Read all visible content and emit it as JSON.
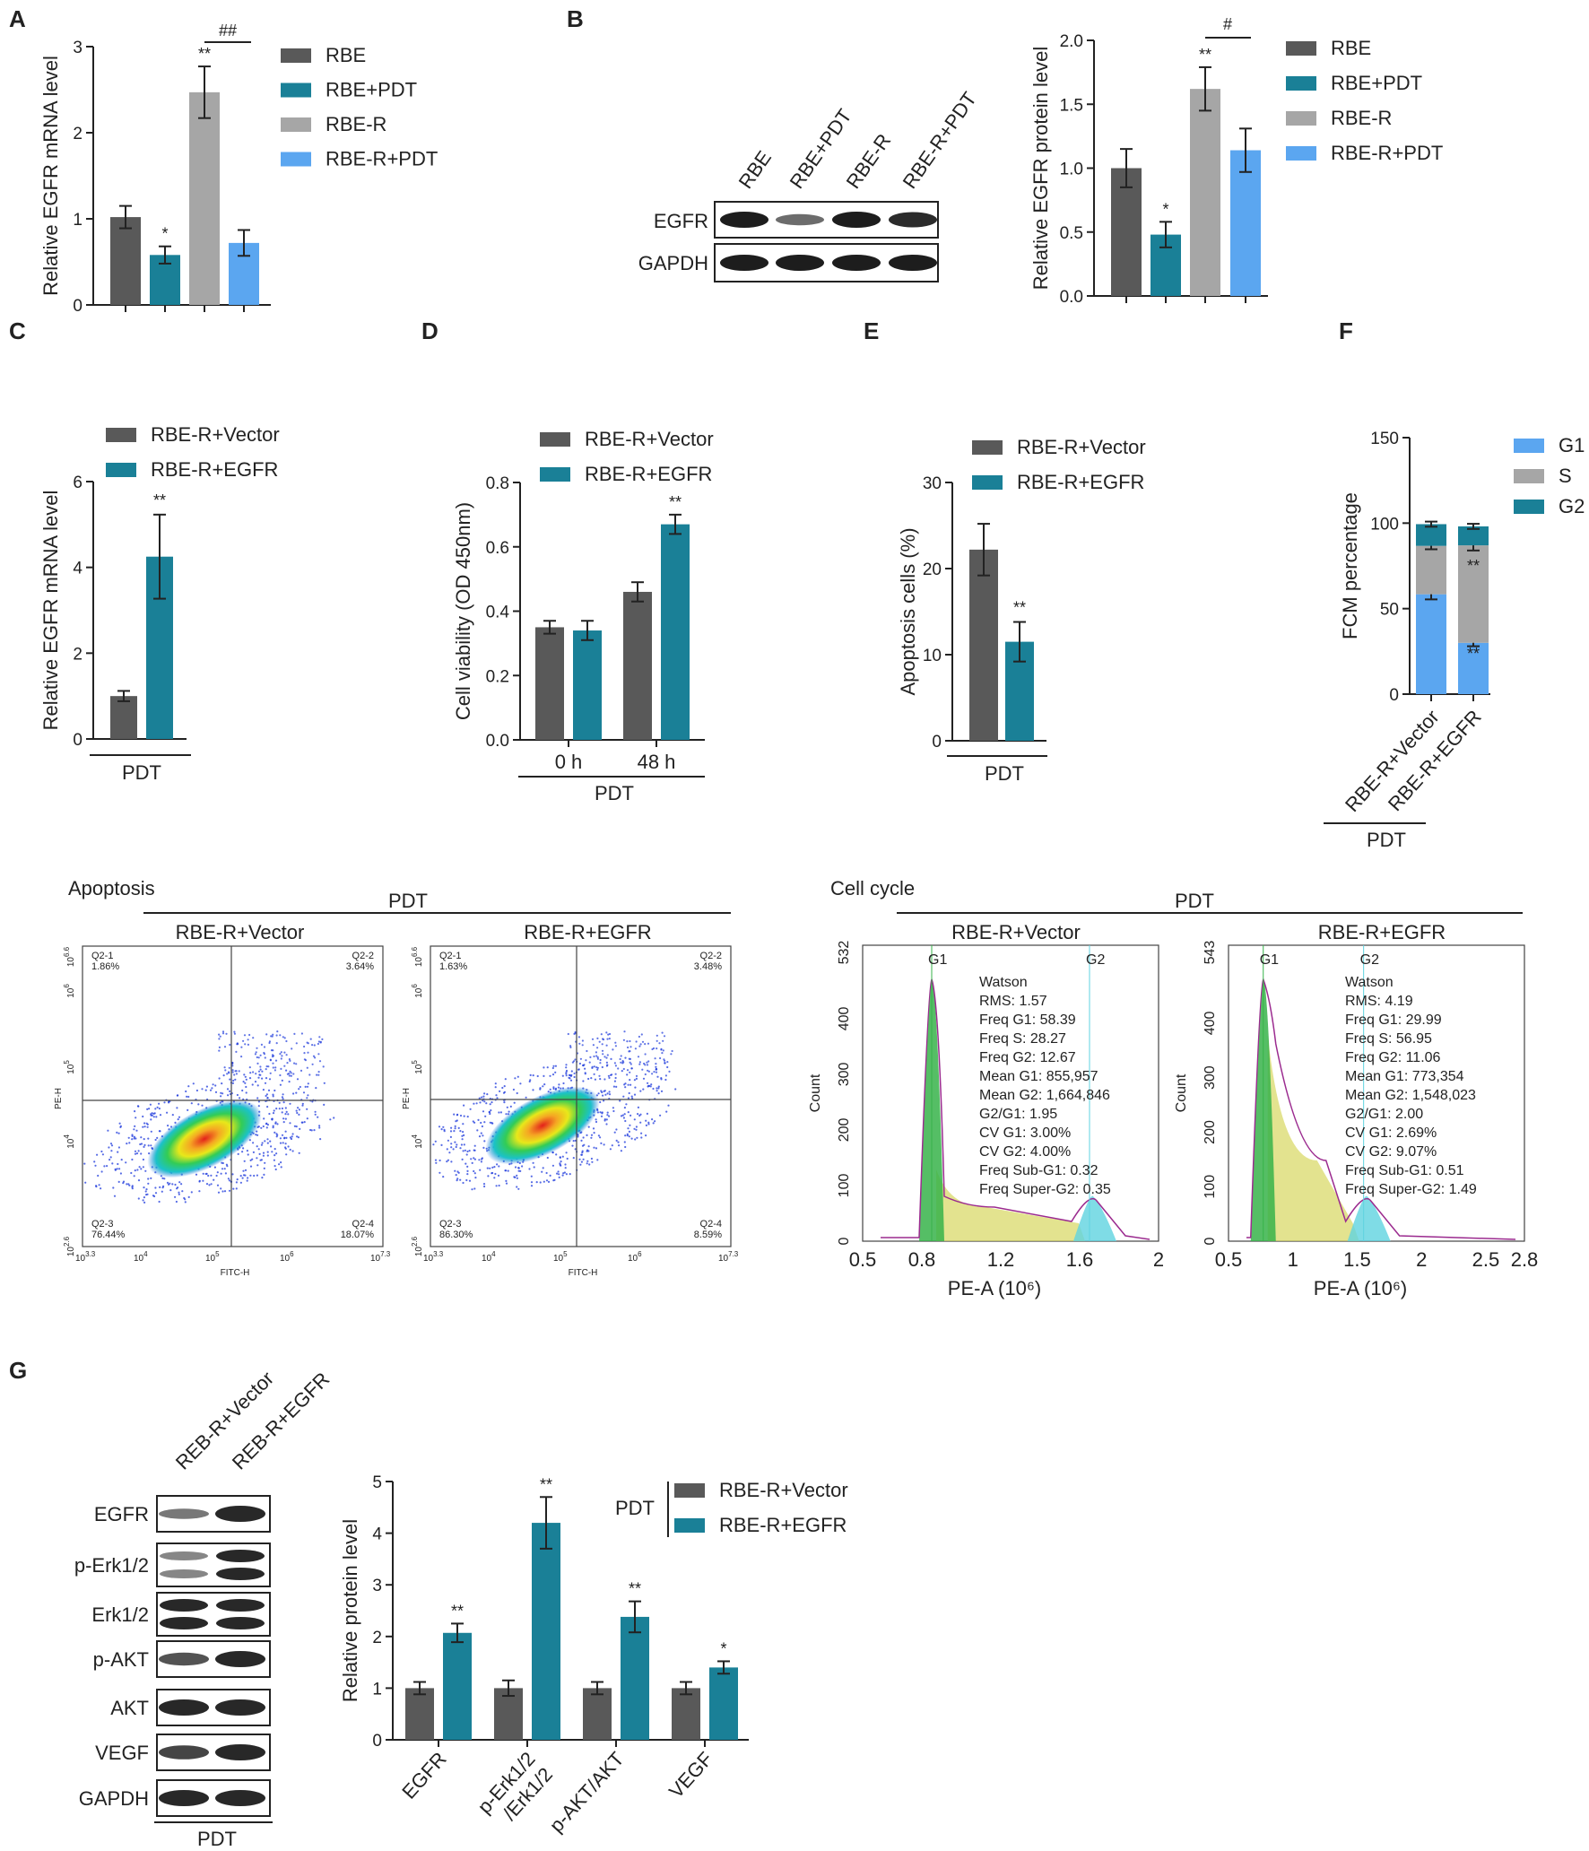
{
  "colors": {
    "dark_gray": "#595959",
    "teal": "#1a8097",
    "light_gray": "#a6a6a6",
    "light_blue": "#5ba6f0",
    "g1_blue": "#5ba6f0",
    "s_gray": "#a6a6a6",
    "g2_teal": "#1a8097"
  },
  "panel_labels": [
    "A",
    "B",
    "C",
    "D",
    "E",
    "F",
    "G"
  ],
  "chart_data": [
    {
      "panel": "A",
      "type": "bar",
      "categories": [
        "RBE",
        "RBE+PDT",
        "RBE-R",
        "RBE-R+PDT"
      ],
      "values": [
        1.02,
        0.58,
        2.47,
        0.72
      ],
      "errors": [
        0.13,
        0.1,
        0.3,
        0.15
      ],
      "stars": [
        "",
        "*",
        "**",
        ""
      ],
      "bracket": {
        "from": 2,
        "to": 3,
        "label": "##"
      },
      "ylabel": "Relative EGFR mRNA level",
      "ylim": [
        0,
        3
      ],
      "yticks": [
        "0",
        "1",
        "2",
        "3"
      ],
      "legend": [
        "RBE",
        "RBE+PDT",
        "RBE-R",
        "RBE-R+PDT"
      ]
    },
    {
      "panel": "B",
      "type": "bar",
      "categories": [
        "RBE",
        "RBE+PDT",
        "RBE-R",
        "RBE-R+PDT"
      ],
      "values": [
        1.0,
        0.48,
        1.62,
        1.14
      ],
      "errors": [
        0.15,
        0.1,
        0.17,
        0.17
      ],
      "stars": [
        "",
        "*",
        "**",
        ""
      ],
      "bracket": {
        "from": 2,
        "to": 3,
        "label": "#"
      },
      "ylabel": "Relative EGFR protein level",
      "ylim": [
        0,
        2
      ],
      "yticks": [
        "0.0",
        "0.5",
        "1.0",
        "1.5",
        "2.0"
      ],
      "legend": [
        "RBE",
        "RBE+PDT",
        "RBE-R",
        "RBE-R+PDT"
      ]
    },
    {
      "panel": "C",
      "type": "bar",
      "categories": [
        "RBE-R+Vector",
        "RBE-R+EGFR"
      ],
      "values": [
        1.0,
        4.25
      ],
      "errors": [
        0.12,
        0.98
      ],
      "stars": [
        "",
        "**"
      ],
      "ylabel": "Relative EGFR mRNA level",
      "xgroup": "PDT",
      "ylim": [
        0,
        6
      ],
      "yticks": [
        "0",
        "2",
        "4",
        "6"
      ],
      "legend": [
        "RBE-R+Vector",
        "RBE-R+EGFR"
      ]
    },
    {
      "panel": "D",
      "type": "bar",
      "categories": [
        "0 h",
        "48 h"
      ],
      "series": [
        {
          "name": "RBE-R+Vector",
          "values": [
            0.35,
            0.46
          ],
          "errors": [
            0.02,
            0.03
          ]
        },
        {
          "name": "RBE-R+EGFR",
          "values": [
            0.34,
            0.67
          ],
          "errors": [
            0.03,
            0.03
          ]
        }
      ],
      "stars": [
        "",
        "",
        "",
        "**"
      ],
      "ylabel": "Cell viability (OD 450nm)",
      "xgroup": "PDT",
      "ylim": [
        0,
        0.8
      ],
      "yticks": [
        "0.0",
        "0.2",
        "0.4",
        "0.6",
        "0.8"
      ]
    },
    {
      "panel": "E",
      "type": "bar",
      "categories": [
        "RBE-R+Vector",
        "RBE-R+EGFR"
      ],
      "values": [
        22.2,
        11.5
      ],
      "errors": [
        3.0,
        2.3
      ],
      "stars": [
        "",
        "**"
      ],
      "ylabel": "Apoptosis cells (%)",
      "xgroup": "PDT",
      "ylim": [
        0,
        30
      ],
      "yticks": [
        "0",
        "10",
        "20",
        "30"
      ],
      "legend": [
        "RBE-R+Vector",
        "RBE-R+EGFR"
      ]
    },
    {
      "panel": "F",
      "type": "bar",
      "stacked": true,
      "categories": [
        "RBE-R+Vector",
        "RBE-R+EGFR"
      ],
      "series": [
        {
          "name": "G1",
          "values": [
            58.4,
            30.0
          ],
          "errors": [
            3.0,
            2.0
          ]
        },
        {
          "name": "S",
          "values": [
            28.3,
            57.0
          ],
          "errors": [
            2.0,
            3.0
          ]
        },
        {
          "name": "G2",
          "values": [
            12.7,
            11.1
          ],
          "errors": [
            1.5,
            1.5
          ]
        }
      ],
      "stars": {
        "G1_EGFR": "**",
        "S_EGFR": "**"
      },
      "ylabel": "FCM percentage",
      "xgroup": "PDT",
      "ylim": [
        0,
        150
      ],
      "yticks": [
        "0",
        "50",
        "100",
        "150"
      ],
      "legend": [
        "G1",
        "S",
        "G2"
      ]
    },
    {
      "panel": "G",
      "type": "bar",
      "categories": [
        "EGFR",
        "p-Erk1/2 /Erk1/2",
        "p-AKT/AKT",
        "VEGF"
      ],
      "category_lines": [
        [
          "EGFR"
        ],
        [
          "p-Erk1/2",
          "/Erk1/2"
        ],
        [
          "p-AKT/AKT"
        ],
        [
          "VEGF"
        ]
      ],
      "series": [
        {
          "name": "RBE-R+Vector",
          "values": [
            1.0,
            1.0,
            1.0,
            1.0
          ],
          "errors": [
            0.12,
            0.15,
            0.12,
            0.12
          ]
        },
        {
          "name": "RBE-R+EGFR",
          "values": [
            2.07,
            4.2,
            2.38,
            1.4
          ],
          "errors": [
            0.18,
            0.5,
            0.3,
            0.12
          ]
        }
      ],
      "stars": [
        "**",
        "**",
        "**",
        "*"
      ],
      "ylabel": "Relative protein level",
      "ylim": [
        0,
        5
      ],
      "yticks": [
        "0",
        "1",
        "2",
        "3",
        "4",
        "5"
      ],
      "legend_title": "PDT",
      "legend": [
        "RBE-R+Vector",
        "RBE-R+EGFR"
      ]
    }
  ],
  "western_B": {
    "lanes": [
      "RBE",
      "RBE+PDT",
      "RBE-R",
      "RBE-R+PDT"
    ],
    "rows": [
      "EGFR",
      "GAPDH"
    ],
    "intensity": {
      "EGFR": [
        1.0,
        0.45,
        1.0,
        0.9
      ],
      "GAPDH": [
        1.0,
        1.0,
        1.0,
        1.0
      ]
    }
  },
  "western_G": {
    "lanes": [
      "REB-R+Vector",
      "REB-R+EGFR"
    ],
    "rows": [
      "EGFR",
      "p-Erk1/2",
      "Erk1/2",
      "p-AKT",
      "AKT",
      "VEGF",
      "GAPDH"
    ],
    "bottom_label": "PDT"
  },
  "apoptosis": {
    "title": "Apoptosis",
    "group": "PDT",
    "plots": [
      {
        "name": "RBE-R+Vector",
        "q1": "Q2-1",
        "q1v": "1.86%",
        "q2": "Q2-2",
        "q2v": "3.64%",
        "q3": "Q2-3",
        "q3v": "76.44%",
        "q4": "Q2-4",
        "q4v": "18.07%"
      },
      {
        "name": "RBE-R+EGFR",
        "q1": "Q2-1",
        "q1v": "1.63%",
        "q2": "Q2-2",
        "q2v": "3.48%",
        "q3": "Q2-3",
        "q3v": "86.30%",
        "q4": "Q2-4",
        "q4v": "8.59%"
      }
    ],
    "xlabel": "FITC-H",
    "ylabel": "PE-H",
    "xticks": [
      "10^3.3",
      "10^4",
      "10^5",
      "10^6",
      "10^7.3"
    ],
    "yticks": [
      "10^2.6",
      "10^4",
      "10^5",
      "10^6",
      "10^6.6"
    ]
  },
  "cell_cycle": {
    "title": "Cell cycle",
    "group": "PDT",
    "ylabel": "Count",
    "xlabel": "PE-A (10⁶)",
    "plots": [
      {
        "name": "RBE-R+Vector",
        "ymax": "532",
        "yticks": [
          "0",
          "100",
          "200",
          "300",
          "400",
          "532"
        ],
        "xticks": [
          "0.5",
          "0.8",
          "1.2",
          "1.6",
          "2"
        ],
        "xmin": 0.5,
        "xmax": 2.0,
        "g1_pos": 0.85,
        "g2_pos": 1.65,
        "watson": [
          "Watson",
          "RMS: 1.57",
          "Freq G1: 58.39",
          "Freq S: 28.27",
          "Freq G2: 12.67",
          "Mean G1: 855,957",
          "Mean G2: 1,664,846",
          "G2/G1: 1.95",
          "CV G1: 3.00%",
          "CV G2: 4.00%",
          "Freq Sub-G1: 0.32",
          "Freq Super-G2: 0.35"
        ]
      },
      {
        "name": "RBE-R+EGFR",
        "ymax": "543",
        "yticks": [
          "0",
          "100",
          "200",
          "300",
          "400",
          "543"
        ],
        "xticks": [
          "0.5",
          "1",
          "1.5",
          "2",
          "2.5",
          "2.8"
        ],
        "xmin": 0.5,
        "xmax": 2.8,
        "g1_pos": 0.77,
        "g2_pos": 1.55,
        "watson": [
          "Watson",
          "RMS: 4.19",
          "Freq G1: 29.99",
          "Freq S: 56.95",
          "Freq G2: 11.06",
          "Mean G1: 773,354",
          "Mean G2: 1,548,023",
          "G2/G1: 2.00",
          "CV G1: 2.69%",
          "CV G2: 9.07%",
          "Freq Sub-G1: 0.51",
          "Freq Super-G2: 1.49"
        ]
      }
    ],
    "peak_labels": [
      "G1",
      "G2"
    ]
  }
}
